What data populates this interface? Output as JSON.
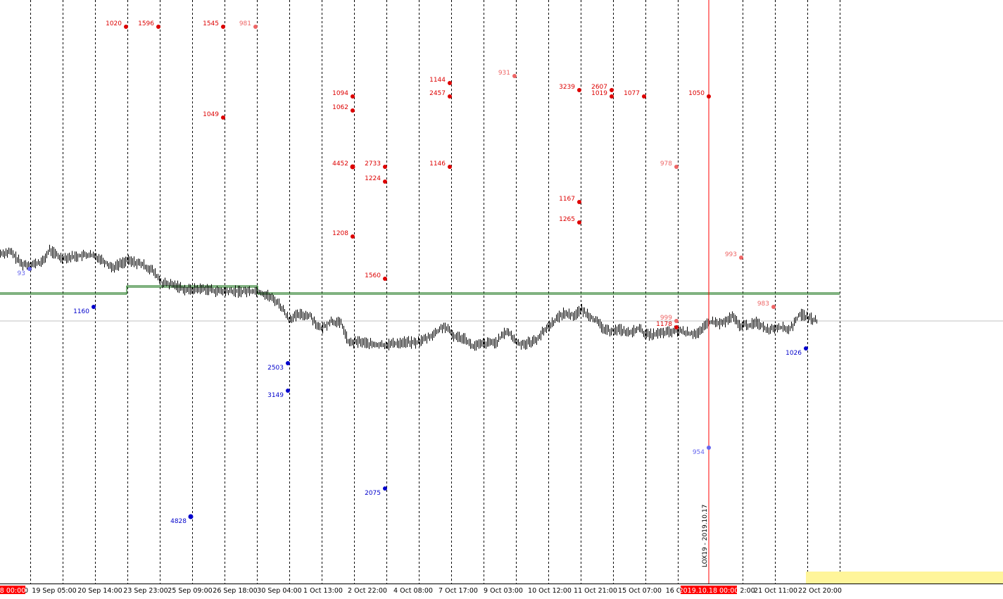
{
  "chart_data": {
    "type": "line",
    "title": "",
    "xlabel": "",
    "ylabel": "",
    "grid": "vertical-dashed",
    "x_ticks": [
      "19 Sep 05:00",
      "20 Sep 14:00",
      "23 Sep 23:00",
      "25 Sep 09:00",
      "26 Sep 18:00",
      "30 Sep 04:00",
      "1 Oct 13:00",
      "2 Oct 22:00",
      "4 Oct 08:00",
      "7 Oct 17:00",
      "9 Oct 03:00",
      "10 Oct 12:00",
      "11 Oct 21:00",
      "15 Oct 07:00",
      "16 O",
      "21 Oct 11:00",
      "22 Oct 20:00"
    ],
    "axis_highlights": {
      "left": "8 00:00",
      "cursor": "2019.10.18 00:00",
      "after_cursor": "2:00"
    },
    "vertical_marker": {
      "label": "LOX19 - 2019.10.17",
      "color": "#ff0000"
    },
    "colors": {
      "series": "#000000",
      "red": "#dd0000",
      "light_red": "#ee6666",
      "blue": "#0000cc",
      "light_blue": "#6666ee",
      "level_line": "#006400",
      "marker_line": "#ff0000",
      "highlight_band": "#fff59a"
    },
    "markers": [
      {
        "label": "1020",
        "color": "red"
      },
      {
        "label": "1596",
        "color": "red"
      },
      {
        "label": "1545",
        "color": "red"
      },
      {
        "label": "981",
        "color": "light_red"
      },
      {
        "label": "1049",
        "color": "red"
      },
      {
        "label": "1094",
        "color": "red"
      },
      {
        "label": "1062",
        "color": "red"
      },
      {
        "label": "4452",
        "color": "red"
      },
      {
        "label": "2733",
        "color": "red"
      },
      {
        "label": "1224",
        "color": "red"
      },
      {
        "label": "1208",
        "color": "red"
      },
      {
        "label": "1560",
        "color": "red"
      },
      {
        "label": "1144",
        "color": "red"
      },
      {
        "label": "2457",
        "color": "red"
      },
      {
        "label": "1146",
        "color": "red"
      },
      {
        "label": "931",
        "color": "light_red"
      },
      {
        "label": "3239",
        "color": "red"
      },
      {
        "label": "2607",
        "color": "red"
      },
      {
        "label": "1019",
        "color": "red"
      },
      {
        "label": "1077",
        "color": "red"
      },
      {
        "label": "1167",
        "color": "red"
      },
      {
        "label": "1265",
        "color": "red"
      },
      {
        "label": "1050",
        "color": "red"
      },
      {
        "label": "978",
        "color": "light_red"
      },
      {
        "label": "999",
        "color": "light_red"
      },
      {
        "label": "1178",
        "color": "red"
      },
      {
        "label": "993",
        "color": "light_red"
      },
      {
        "label": "983",
        "color": "light_red"
      },
      {
        "label": "93",
        "color": "light_blue"
      },
      {
        "label": "1160",
        "color": "blue"
      },
      {
        "label": "2503",
        "color": "blue"
      },
      {
        "label": "3149",
        "color": "blue"
      },
      {
        "label": "2075",
        "color": "blue"
      },
      {
        "label": "4828",
        "color": "blue"
      },
      {
        "label": "954",
        "color": "light_blue"
      },
      {
        "label": "1026",
        "color": "blue"
      }
    ]
  }
}
